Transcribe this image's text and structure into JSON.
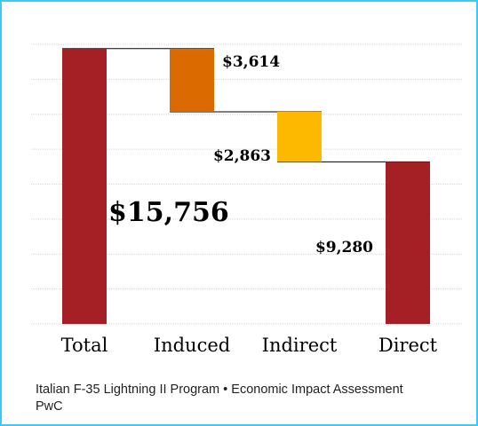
{
  "chart_data": {
    "type": "bar",
    "title": "",
    "xlabel": "",
    "ylabel": "",
    "categories": [
      "Total",
      "Induced",
      "Indirect",
      "Direct"
    ],
    "values": [
      15756,
      3614,
      2863,
      9280
    ],
    "value_labels": [
      "$15,756",
      "$3,614",
      "$2,863",
      "$9,280"
    ],
    "waterfall": {
      "bases": [
        0,
        12142,
        9279,
        0
      ],
      "tops": [
        15756,
        15756,
        12142,
        9280
      ]
    },
    "ylim": [
      0,
      16000
    ],
    "grid": true,
    "gridlines": 8,
    "colors": [
      "#a52024",
      "#db6b00",
      "#fdb900",
      "#a52024"
    ],
    "legend": "none"
  },
  "caption": {
    "line1": "Italian F-35 Lightning II Program • Economic Impact Assessment",
    "line2": "PwC"
  }
}
